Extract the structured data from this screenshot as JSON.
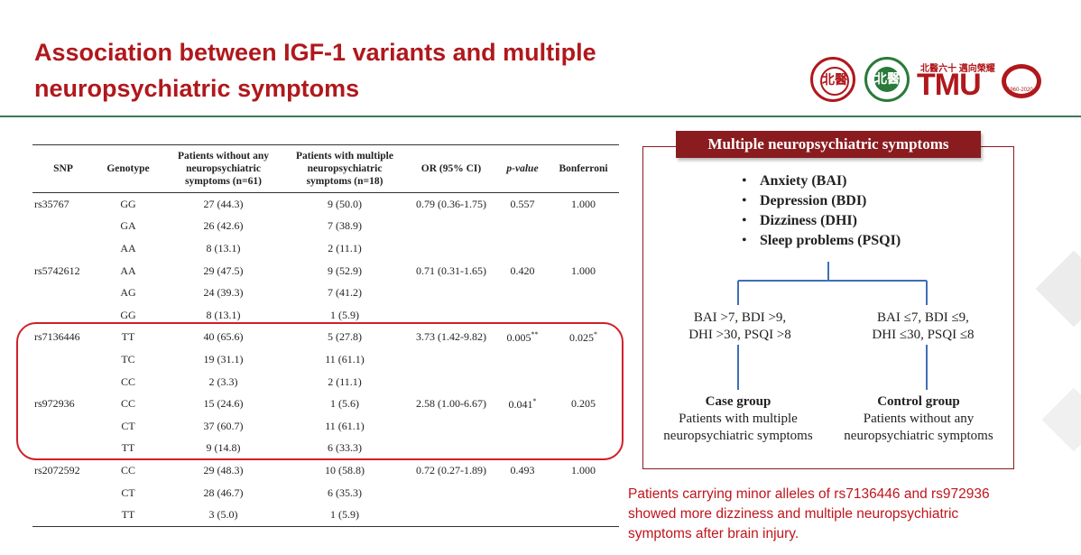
{
  "slide": {
    "title_lines": [
      "Association between IGF-1 variants and multiple",
      "neuropsychiatric symptoms"
    ],
    "colors": {
      "title": "#b0181c",
      "accent_line": "#3e7a55",
      "highlight_box": "#d0202a",
      "diagram_header": "#8a1c20"
    }
  },
  "logos": {
    "seal1_text": "北醫",
    "seal2_text": "北醫",
    "anniversary_small": "北醫六十 邁向榮耀",
    "anniversary_big": "TMU",
    "anniversary_years": "1960-2020"
  },
  "table": {
    "headers": {
      "snp": "SNP",
      "genotype": "Genotype",
      "without": [
        "Patients without any",
        "neuropsychiatric",
        "symptoms (n=61)"
      ],
      "with": [
        "Patients with multiple",
        "neuropsychiatric",
        "symptoms (n=18)"
      ],
      "or": "OR (95% CI)",
      "p": "p-value",
      "bonf": "Bonferroni"
    },
    "rows": [
      {
        "snp": "rs35767",
        "genotype": "GG",
        "without": "27 (44.3)",
        "with": "9 (50.0)",
        "or": "0.79 (0.36-1.75)",
        "p": "0.557",
        "bonf": "1.000"
      },
      {
        "snp": "",
        "genotype": "GA",
        "without": "26 (42.6)",
        "with": "7 (38.9)",
        "or": "",
        "p": "",
        "bonf": ""
      },
      {
        "snp": "",
        "genotype": "AA",
        "without": "8 (13.1)",
        "with": "2 (11.1)",
        "or": "",
        "p": "",
        "bonf": ""
      },
      {
        "snp": "rs5742612",
        "genotype": "AA",
        "without": "29 (47.5)",
        "with": "9 (52.9)",
        "or": "0.71 (0.31-1.65)",
        "p": "0.420",
        "bonf": "1.000"
      },
      {
        "snp": "",
        "genotype": "AG",
        "without": "24 (39.3)",
        "with": "7 (41.2)",
        "or": "",
        "p": "",
        "bonf": ""
      },
      {
        "snp": "",
        "genotype": "GG",
        "without": "8 (13.1)",
        "with": "1 (5.9)",
        "or": "",
        "p": "",
        "bonf": ""
      },
      {
        "snp": "rs7136446",
        "genotype": "TT",
        "without": "40 (65.6)",
        "with": "5 (27.8)",
        "or": "3.73 (1.42-9.82)",
        "p": "0.005**",
        "bonf": "0.025*"
      },
      {
        "snp": "",
        "genotype": "TC",
        "without": "19 (31.1)",
        "with": "11 (61.1)",
        "or": "",
        "p": "",
        "bonf": ""
      },
      {
        "snp": "",
        "genotype": "CC",
        "without": "2 (3.3)",
        "with": "2 (11.1)",
        "or": "",
        "p": "",
        "bonf": ""
      },
      {
        "snp": "rs972936",
        "genotype": "CC",
        "without": "15 (24.6)",
        "with": "1 (5.6)",
        "or": "2.58 (1.00-6.67)",
        "p": "0.041*",
        "bonf": "0.205"
      },
      {
        "snp": "",
        "genotype": "CT",
        "without": "37 (60.7)",
        "with": "11 (61.1)",
        "or": "",
        "p": "",
        "bonf": ""
      },
      {
        "snp": "",
        "genotype": "TT",
        "without": "9 (14.8)",
        "with": "6 (33.3)",
        "or": "",
        "p": "",
        "bonf": ""
      },
      {
        "snp": "rs2072592",
        "genotype": "CC",
        "without": "29 (48.3)",
        "with": "10 (58.8)",
        "or": "0.72 (0.27-1.89)",
        "p": "0.493",
        "bonf": "1.000"
      },
      {
        "snp": "",
        "genotype": "CT",
        "without": "28 (46.7)",
        "with": "6 (35.3)",
        "or": "",
        "p": "",
        "bonf": ""
      },
      {
        "snp": "",
        "genotype": "TT",
        "without": "3 (5.0)",
        "with": "1 (5.9)",
        "or": "",
        "p": "",
        "bonf": ""
      }
    ]
  },
  "diagram": {
    "header": "Multiple neuropsychiatric symptoms",
    "symptoms": [
      "Anxiety (BAI)",
      "Depression (BDI)",
      "Dizziness (DHI)",
      "Sleep problems (PSQI)"
    ],
    "case_criteria": [
      "BAI >7, BDI >9,",
      "DHI >30, PSQI >8"
    ],
    "control_criteria": [
      "BAI ≤7, BDI ≤9,",
      "DHI ≤30, PSQI ≤8"
    ],
    "case_group": {
      "title": "Case group",
      "lines": [
        "Patients with multiple",
        "neuropsychiatric symptoms"
      ]
    },
    "control_group": {
      "title": "Control group",
      "lines": [
        "Patients without any",
        "neuropsychiatric symptoms"
      ]
    }
  },
  "note": {
    "lines": [
      "Patients carrying minor alleles of rs7136446 and rs972936",
      "showed more dizziness and multiple neuropsychiatric",
      "symptoms after brain injury."
    ]
  }
}
